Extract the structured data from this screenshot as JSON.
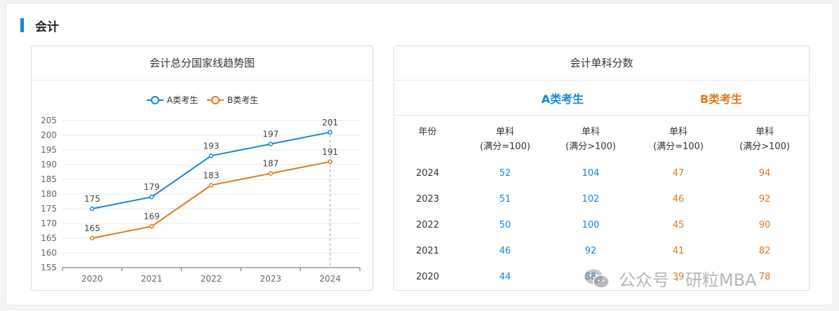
{
  "section": {
    "title": "会计",
    "accent": "#1787d6"
  },
  "chart_panel": {
    "title": "会计总分国家线趋势图"
  },
  "table_panel": {
    "title": "会计单科分数",
    "group_a": "A类考生",
    "group_b": "B类考生",
    "headers": {
      "year": "年份",
      "c1_line1": "单科",
      "c1_line2": "(满分=100)",
      "c2_line1": "单科",
      "c2_line2": "(满分>100)",
      "c3_line1": "单科",
      "c3_line2": "(满分=100)",
      "c4_line1": "单科",
      "c4_line2": "(满分>100)"
    },
    "rows": [
      {
        "year": "2024",
        "a1": "52",
        "a2": "104",
        "b1": "47",
        "b2": "94"
      },
      {
        "year": "2023",
        "a1": "51",
        "a2": "102",
        "b1": "46",
        "b2": "92"
      },
      {
        "year": "2022",
        "a1": "50",
        "a2": "100",
        "b1": "45",
        "b2": "90"
      },
      {
        "year": "2021",
        "a1": "46",
        "a2": "92",
        "b1": "41",
        "b2": "82"
      },
      {
        "year": "2020",
        "a1": "44",
        "a2": "88",
        "b1": "39",
        "b2": "78"
      }
    ]
  },
  "watermark": {
    "text": "公众号 · 研粒MBA"
  },
  "colors": {
    "series_a": "#1787d6",
    "series_b": "#e07a1d"
  },
  "chart_data": {
    "type": "line",
    "x": [
      "2020",
      "2021",
      "2022",
      "2023",
      "2024"
    ],
    "series": [
      {
        "name": "A类考生",
        "values": [
          175,
          179,
          193,
          197,
          201
        ],
        "color": "#1787d6"
      },
      {
        "name": "B类考生",
        "values": [
          165,
          169,
          183,
          187,
          191
        ],
        "color": "#e07a1d"
      }
    ],
    "ylim": [
      155,
      205
    ],
    "yticks": [
      155,
      160,
      165,
      170,
      175,
      180,
      185,
      190,
      195,
      200,
      205
    ],
    "grid": true,
    "legend": "top-center",
    "title": "",
    "xlabel": "",
    "ylabel": ""
  }
}
